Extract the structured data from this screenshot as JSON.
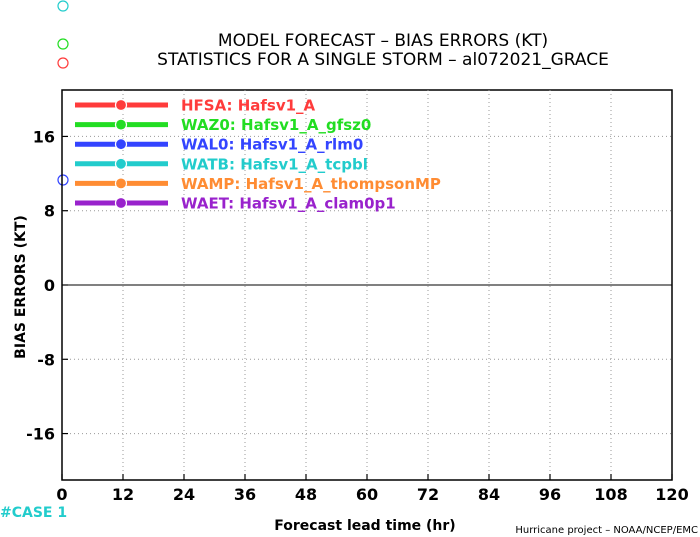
{
  "chart_data": {
    "type": "line",
    "title": "MODEL FORECAST – BIAS ERRORS (KT)",
    "subtitle": "STATISTICS FOR A SINGLE STORM – al072021_GRACE",
    "xlabel": "Forecast lead time (hr)",
    "ylabel": "BIAS ERRORS (KT)",
    "xlim": [
      0,
      120
    ],
    "ylim": [
      -21,
      21
    ],
    "xticks": [
      0,
      12,
      24,
      36,
      48,
      60,
      72,
      84,
      96,
      108,
      120
    ],
    "yticks": [
      -16,
      -8,
      0,
      8,
      16
    ],
    "grid": true,
    "legend_position": "top-left",
    "series": [
      {
        "name": "HFSA: Hafsv1_A",
        "color": "#ff3b3b",
        "x": [],
        "y": []
      },
      {
        "name": "WAZ0: Hafsv1_A_gfsz0",
        "color": "#22dd22",
        "x": [],
        "y": []
      },
      {
        "name": "WAL0: Hafsv1_A_rlm0",
        "color": "#3344ff",
        "x": [],
        "y": []
      },
      {
        "name": "WATB: Hafsv1_A_tcpbl",
        "color": "#22cccc",
        "x": [],
        "y": []
      },
      {
        "name": "WAMP: Hafsv1_A_thompsonMP",
        "color": "#ff8c33",
        "x": [],
        "y": []
      },
      {
        "name": "WAET: Hafsv1_A_clam0p1",
        "color": "#9922cc",
        "x": [],
        "y": []
      }
    ]
  },
  "case_label": "#CASE  1",
  "footer": "Hurricane project – NOAA/NCEP/EMC",
  "colors": {
    "case_label": "#22cccc",
    "marker_top": "#22cccc",
    "marker_mid": "#22dd22",
    "marker_low": "#ff3b3b",
    "marker_axis": "#3344ff"
  }
}
